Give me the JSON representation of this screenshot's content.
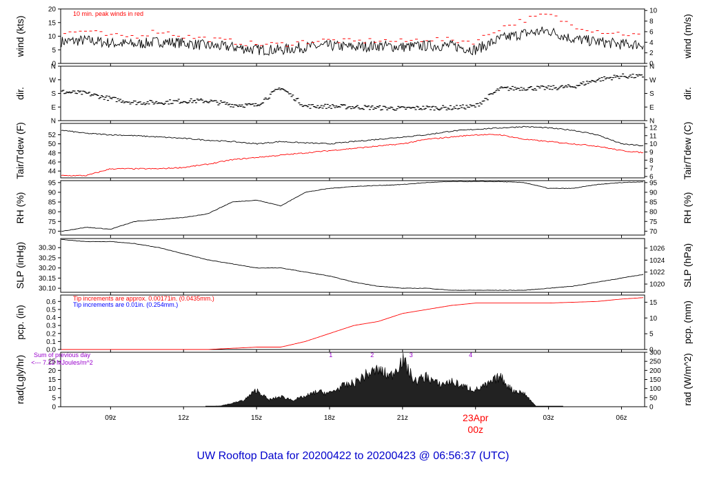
{
  "footer_title": "UW Rooftop Data for 20200422  to  20200423 @ 06:56:37  (UTC)",
  "colors": {
    "main": "#000000",
    "red": "#ff0000",
    "blue": "#0000ff",
    "purple": "#9900cc",
    "title_blue": "#0000cc"
  },
  "time_axis": {
    "tick_labels": [
      "09z",
      "12z",
      "15z",
      "18z",
      "21z",
      "00z",
      "03z",
      "06z"
    ],
    "tick_hours": [
      9,
      12,
      15,
      18,
      21,
      24,
      27,
      30
    ],
    "start_hour": 6.95,
    "end_hour": 30.95,
    "date_label": "23Apr",
    "date_hour": 24
  },
  "chart_data": [
    {
      "type": "line",
      "ylabel": "wind (kts)",
      "ylabel_right": "wind (m/s)",
      "ylim": [
        0,
        20
      ],
      "yticks": [
        0,
        5,
        10,
        15,
        20
      ],
      "right_ylim": [
        0,
        10.29
      ],
      "right_yticks": [
        0,
        2,
        4,
        6,
        8,
        10
      ],
      "annotation": "10 min. peak winds in red",
      "series": [
        {
          "x": [
            7,
            8,
            9,
            10,
            11,
            12,
            13,
            14,
            15,
            16,
            17,
            18,
            19,
            20,
            21,
            22,
            23,
            24,
            25,
            26,
            27,
            28,
            29,
            30,
            31
          ],
          "values": [
            8,
            8.5,
            7.5,
            7,
            8,
            7.5,
            6.5,
            6,
            5,
            5,
            6,
            6.5,
            6,
            6.5,
            6,
            6.5,
            6.5,
            5,
            9,
            11,
            12,
            9,
            8,
            7,
            7
          ]
        },
        {
          "x": [
            7,
            8,
            9,
            10,
            11,
            12,
            13,
            14,
            15,
            16,
            17,
            18,
            19,
            20,
            21,
            22,
            23,
            24,
            25,
            26,
            27,
            28,
            29,
            30,
            31
          ],
          "values": [
            11,
            12,
            10,
            10,
            12,
            10,
            9,
            8,
            7,
            7,
            8,
            8.5,
            8,
            8.5,
            8,
            9,
            8.5,
            8,
            13,
            16,
            18,
            14,
            12,
            11,
            10
          ]
        }
      ]
    },
    {
      "type": "scatter",
      "ylabel": "dir.",
      "ylabel_right": "dir.",
      "ylim": [
        0,
        360
      ],
      "yticks": [
        0,
        90,
        180,
        270,
        360
      ],
      "ytick_labels": [
        "N",
        "E",
        "S",
        "W",
        "N"
      ],
      "series": [
        {
          "x": [
            7,
            8,
            9,
            10,
            11,
            12,
            13,
            14,
            15,
            16,
            17,
            18,
            19,
            20,
            21,
            22,
            23,
            24,
            25,
            26,
            27,
            28,
            29,
            30,
            31
          ],
          "values": [
            190,
            180,
            145,
            120,
            120,
            130,
            130,
            105,
            100,
            220,
            95,
            95,
            90,
            85,
            80,
            85,
            85,
            95,
            210,
            215,
            215,
            225,
            270,
            295,
            290
          ]
        }
      ]
    },
    {
      "type": "line",
      "ylabel": "Tair/Tdew (F)",
      "ylabel_right": "Tair/Tdew (C)",
      "ylim": [
        42.5,
        54.5
      ],
      "yticks": [
        44,
        46,
        48,
        50,
        52
      ],
      "right_yticks": [
        6,
        7,
        8,
        9,
        10,
        11,
        12
      ],
      "series": [
        {
          "x": [
            7,
            8,
            9,
            10,
            11,
            12,
            13,
            14,
            15,
            16,
            17,
            18,
            19,
            20,
            21,
            22,
            23,
            24,
            25,
            26,
            27,
            28,
            29,
            30,
            31
          ],
          "values": [
            53,
            52.3,
            52,
            51.8,
            51.5,
            51.2,
            50.8,
            50.5,
            50,
            50.5,
            50.2,
            50,
            50.5,
            51,
            51.5,
            52,
            52.8,
            53.2,
            53.5,
            53.8,
            53.5,
            53,
            52,
            50,
            49.5
          ]
        },
        {
          "x": [
            7,
            8,
            9,
            10,
            11,
            12,
            13,
            14,
            15,
            16,
            17,
            18,
            19,
            20,
            21,
            22,
            23,
            24,
            25,
            26,
            27,
            28,
            29,
            30,
            31
          ],
          "values": [
            43,
            43,
            44.5,
            44.5,
            44.5,
            44.8,
            45.5,
            46.5,
            47,
            47.5,
            48,
            48.5,
            49,
            49.5,
            50,
            51,
            51.5,
            52,
            52,
            51,
            50.5,
            50,
            49.5,
            48.5,
            48
          ]
        }
      ]
    },
    {
      "type": "line",
      "ylabel": "RH (%)",
      "ylabel_right": "RH (%)",
      "ylim": [
        68,
        96
      ],
      "yticks": [
        70,
        75,
        80,
        85,
        90,
        95
      ],
      "series": [
        {
          "x": [
            7,
            8,
            9,
            10,
            11,
            12,
            13,
            14,
            15,
            16,
            17,
            18,
            19,
            20,
            21,
            22,
            23,
            24,
            25,
            26,
            27,
            28,
            29,
            30,
            31
          ],
          "values": [
            70,
            72,
            71,
            75,
            76,
            77,
            79,
            85,
            86,
            83,
            90,
            92,
            93,
            93.5,
            94,
            95,
            95.5,
            95.5,
            95.5,
            95,
            92,
            92,
            94,
            95,
            95.5
          ]
        }
      ]
    },
    {
      "type": "line",
      "ylabel": "SLP (inHg)",
      "ylabel_right": "SLP (hPa)",
      "ylim": [
        30.08,
        30.345
      ],
      "yticks": [
        30.1,
        30.15,
        30.2,
        30.25,
        30.3
      ],
      "ytick_labels": [
        "30.10",
        "30.15",
        "30.20",
        "30.25",
        "30.30"
      ],
      "right_yticks": [
        1020,
        1022,
        1024,
        1026
      ],
      "series": [
        {
          "x": [
            7,
            8,
            9,
            10,
            11,
            12,
            13,
            14,
            15,
            16,
            17,
            18,
            19,
            20,
            21,
            22,
            23,
            24,
            25,
            26,
            27,
            28,
            29,
            30,
            31
          ],
          "values": [
            30.34,
            30.33,
            30.33,
            30.32,
            30.3,
            30.27,
            30.24,
            30.22,
            30.2,
            30.2,
            30.18,
            30.16,
            30.13,
            30.11,
            30.1,
            30.1,
            30.09,
            30.09,
            30.09,
            30.09,
            30.1,
            30.11,
            30.13,
            30.15,
            30.17
          ]
        }
      ]
    },
    {
      "type": "line",
      "ylabel": "pcp. (in)",
      "ylabel_right": "pcp. (mm)",
      "ylim": [
        0,
        0.68
      ],
      "yticks": [
        0,
        0.1,
        0.2,
        0.3,
        0.4,
        0.5,
        0.6
      ],
      "ytick_labels": [
        "0.0",
        "0.1",
        "0.2",
        "0.3",
        "0.4",
        "0.5",
        "0.6"
      ],
      "right_yticks": [
        0,
        5,
        10,
        15
      ],
      "annotation_red": "Tip increments are approx. 0.00171in. (0.0435mm.)",
      "annotation_blue": "Tip increments are 0.01in. (0.254mm.)",
      "series": [
        {
          "x": [
            7,
            13,
            15,
            16,
            17,
            18,
            19,
            20,
            21,
            22,
            23,
            24,
            25,
            26,
            27,
            28,
            29,
            30,
            31
          ],
          "values": [
            0,
            0,
            0.03,
            0.03,
            0.1,
            0.2,
            0.3,
            0.35,
            0.45,
            0.5,
            0.55,
            0.58,
            0.58,
            0.58,
            0.58,
            0.59,
            0.6,
            0.63,
            0.65
          ]
        }
      ]
    },
    {
      "type": "area",
      "ylabel": "rad(Lgly/hr)",
      "ylabel_right": "rad (W/m^2)",
      "ylim": [
        0,
        30
      ],
      "yticks": [
        0,
        5,
        10,
        15,
        20,
        25
      ],
      "right_yticks": [
        0,
        50,
        100,
        150,
        200,
        250,
        300
      ],
      "annotation_line1": "Sum of previous day",
      "annotation_line2": "<--- 7.12 MJoules/m^2",
      "markers": [
        {
          "label": "1",
          "x": 18.05
        },
        {
          "label": "2",
          "x": 19.75
        },
        {
          "label": "3",
          "x": 21.35
        },
        {
          "label": "4",
          "x": 23.8
        }
      ],
      "series": [
        {
          "x": [
            13,
            13.5,
            14,
            14.5,
            15,
            15.5,
            16,
            16.5,
            17,
            17.5,
            18,
            18.5,
            19,
            19.5,
            20,
            20.5,
            21,
            21.5,
            22,
            22.5,
            23,
            23.5,
            24,
            24.5,
            25,
            25.5,
            26,
            26.5
          ],
          "values": [
            0,
            0.5,
            2,
            4,
            10,
            4,
            6,
            4,
            6,
            9,
            8,
            12,
            14,
            19,
            22,
            18,
            28,
            15,
            18,
            13,
            15,
            12,
            10,
            13,
            18,
            10,
            8,
            0
          ]
        }
      ]
    }
  ]
}
